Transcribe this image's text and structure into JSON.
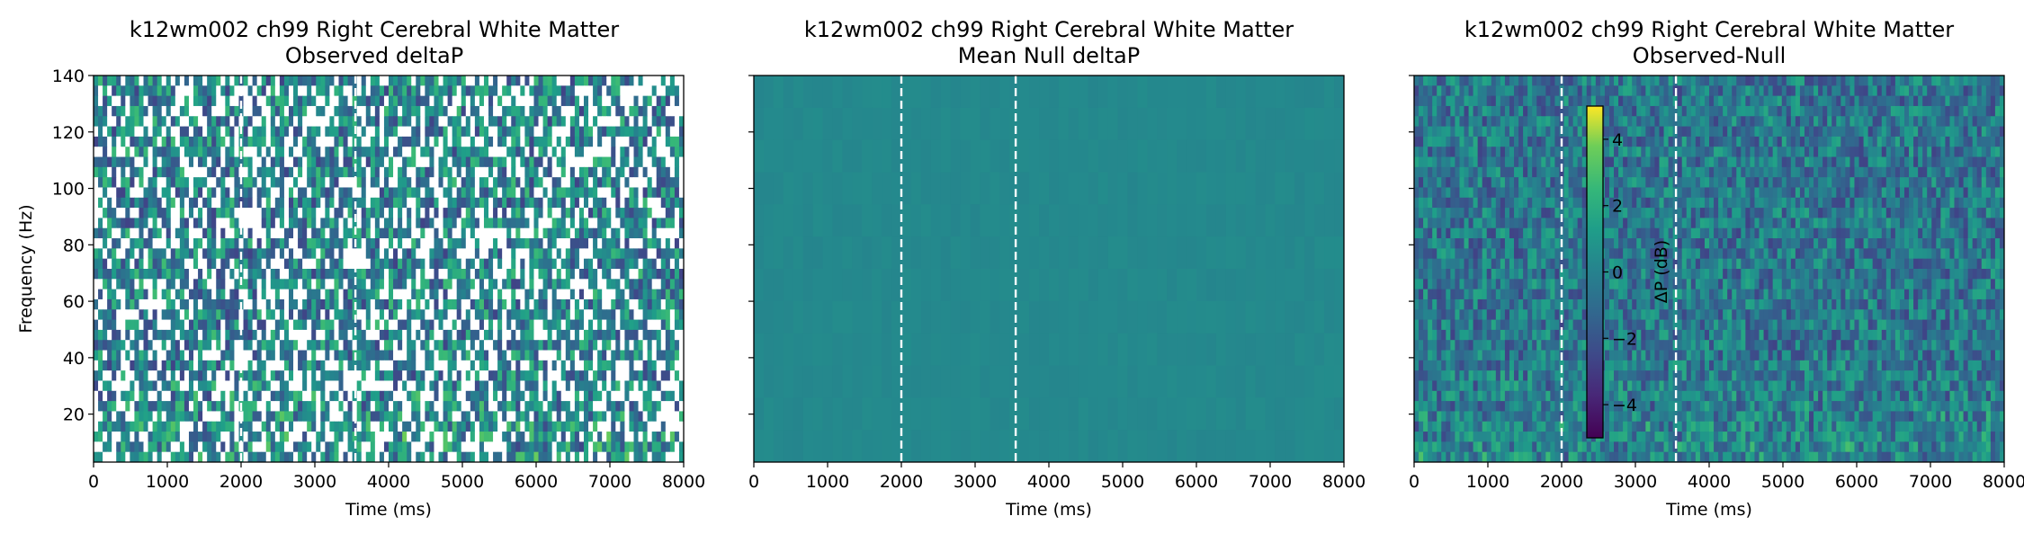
{
  "chart_data": [
    {
      "type": "heatmap",
      "title": "k12wm002 ch99 Right Cerebral White Matter",
      "subtitle": "Observed deltaP",
      "xlabel": "Time (ms)",
      "ylabel": "Frequency (Hz)",
      "xlim": [
        0,
        8000
      ],
      "ylim": [
        3,
        140
      ],
      "xticks": [
        "0",
        "1000",
        "2000",
        "3000",
        "4000",
        "5000",
        "6000",
        "7000",
        "8000"
      ],
      "yticks": [
        "20",
        "40",
        "60",
        "80",
        "100",
        "120",
        "140"
      ],
      "event_lines_ms": [
        2000,
        3550
      ],
      "colormap": "viridis",
      "masked_nonsignificant": true
    },
    {
      "type": "heatmap",
      "title": "k12wm002 ch99 Right Cerebral White Matter",
      "subtitle": "Mean Null deltaP",
      "xlabel": "Time (ms)",
      "ylabel": "",
      "xlim": [
        0,
        8000
      ],
      "ylim": [
        3,
        140
      ],
      "xticks": [
        "0",
        "1000",
        "2000",
        "3000",
        "4000",
        "5000",
        "6000",
        "7000",
        "8000"
      ],
      "yticks": [
        "",
        "",
        "",
        "",
        "",
        "",
        ""
      ],
      "event_lines_ms": [
        2000,
        3550
      ],
      "colormap": "viridis",
      "masked_nonsignificant": false
    },
    {
      "type": "heatmap",
      "title": "k12wm002 ch99 Right Cerebral White Matter",
      "subtitle": "Observed-Null",
      "xlabel": "Time (ms)",
      "ylabel": "",
      "xlim": [
        0,
        8000
      ],
      "ylim": [
        3,
        140
      ],
      "xticks": [
        "0",
        "1000",
        "2000",
        "3000",
        "4000",
        "5000",
        "6000",
        "7000",
        "8000"
      ],
      "yticks": [
        "",
        "",
        "",
        "",
        "",
        "",
        ""
      ],
      "event_lines_ms": [
        2000,
        3550
      ],
      "colormap": "viridis",
      "masked_nonsignificant": false
    }
  ],
  "colorbar": {
    "label": "ΔP (dB)",
    "range": [
      -5,
      5
    ],
    "ticks": [
      "4",
      "2",
      "0",
      "−2",
      "−4"
    ],
    "tick_values": [
      4,
      2,
      0,
      -2,
      -4
    ]
  },
  "colors": {
    "viridis_low": "#440154",
    "viridis_mid": "#21918c",
    "viridis_high": "#fde725",
    "null_fill": "#2a8a87",
    "event_line": "#ffffff"
  }
}
